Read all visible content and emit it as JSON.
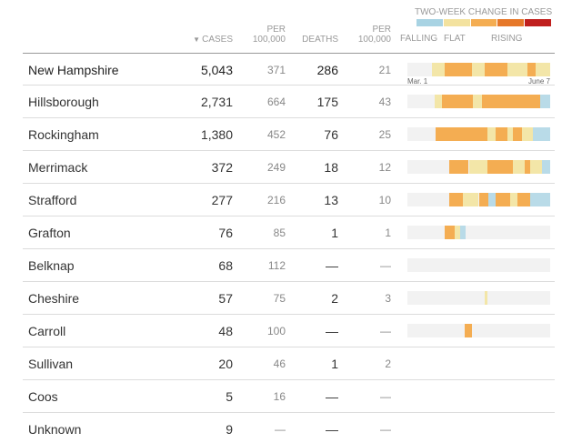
{
  "header": {
    "cases": "CASES",
    "sort_arrow": "▼",
    "per1_line1": "PER",
    "per1_line2": "100,000",
    "deaths": "DEATHS",
    "per2_line1": "PER",
    "per2_line2": "100,000"
  },
  "legend": {
    "title": "TWO-WEEK CHANGE IN CASES",
    "labels": {
      "falling": "FALLING",
      "flat": "FLAT",
      "rising": "RISING"
    },
    "swatches": [
      "#a8d3e3",
      "#f3e29f",
      "#f4ad52",
      "#e6782a",
      "#c0201e"
    ]
  },
  "axis": {
    "start": "Mar. 1",
    "end": "June 7"
  },
  "colors": {
    "none": "#f2f2f2",
    "falling": "#b9dbe8",
    "flat": "#f3e6a8",
    "rising": "#f4ad52",
    "rising_dark": "#ee9a3d"
  },
  "rows": [
    {
      "name": "New Hampshire",
      "cases": "5,043",
      "per1": "371",
      "deaths": "286",
      "per2": "21",
      "trend": [
        [
          0.17,
          0.26,
          "flat"
        ],
        [
          0.26,
          0.45,
          "rising"
        ],
        [
          0.45,
          0.54,
          "flat"
        ],
        [
          0.54,
          0.7,
          "rising"
        ],
        [
          0.7,
          0.84,
          "flat"
        ],
        [
          0.84,
          0.9,
          "rising"
        ],
        [
          0.9,
          1.0,
          "flat"
        ]
      ]
    },
    {
      "name": "Hillsborough",
      "cases": "2,731",
      "per1": "664",
      "deaths": "175",
      "per2": "43",
      "trend": [
        [
          0.19,
          0.24,
          "flat"
        ],
        [
          0.24,
          0.46,
          "rising"
        ],
        [
          0.46,
          0.52,
          "flat"
        ],
        [
          0.52,
          0.93,
          "rising"
        ],
        [
          0.93,
          1.0,
          "falling"
        ]
      ]
    },
    {
      "name": "Rockingham",
      "cases": "1,380",
      "per1": "452",
      "deaths": "76",
      "per2": "25",
      "trend": [
        [
          0.2,
          0.56,
          "rising"
        ],
        [
          0.56,
          0.62,
          "flat"
        ],
        [
          0.62,
          0.7,
          "rising"
        ],
        [
          0.7,
          0.74,
          "flat"
        ],
        [
          0.74,
          0.8,
          "rising"
        ],
        [
          0.8,
          0.88,
          "flat"
        ],
        [
          0.88,
          1.0,
          "falling"
        ]
      ]
    },
    {
      "name": "Merrimack",
      "cases": "372",
      "per1": "249",
      "deaths": "18",
      "per2": "12",
      "trend": [
        [
          0.29,
          0.43,
          "rising"
        ],
        [
          0.43,
          0.56,
          "flat"
        ],
        [
          0.56,
          0.74,
          "rising"
        ],
        [
          0.74,
          0.82,
          "flat"
        ],
        [
          0.82,
          0.86,
          "rising"
        ],
        [
          0.86,
          0.94,
          "flat"
        ],
        [
          0.94,
          1.0,
          "falling"
        ]
      ]
    },
    {
      "name": "Strafford",
      "cases": "277",
      "per1": "216",
      "deaths": "13",
      "per2": "10",
      "trend": [
        [
          0.29,
          0.39,
          "rising"
        ],
        [
          0.39,
          0.5,
          "flat"
        ],
        [
          0.5,
          0.57,
          "rising"
        ],
        [
          0.57,
          0.62,
          "falling"
        ],
        [
          0.62,
          0.72,
          "rising"
        ],
        [
          0.72,
          0.77,
          "flat"
        ],
        [
          0.77,
          0.86,
          "rising"
        ],
        [
          0.86,
          1.0,
          "falling"
        ]
      ]
    },
    {
      "name": "Grafton",
      "cases": "76",
      "per1": "85",
      "deaths": "1",
      "per2": "1",
      "trend": [
        [
          0.26,
          0.33,
          "rising"
        ],
        [
          0.33,
          0.37,
          "flat"
        ],
        [
          0.37,
          0.41,
          "falling"
        ]
      ]
    },
    {
      "name": "Belknap",
      "cases": "68",
      "per1": "112",
      "deaths": "—",
      "per2": "—",
      "trend": []
    },
    {
      "name": "Cheshire",
      "cases": "57",
      "per1": "75",
      "deaths": "2",
      "per2": "3",
      "trend": [
        [
          0.54,
          0.56,
          "flat"
        ]
      ]
    },
    {
      "name": "Carroll",
      "cases": "48",
      "per1": "100",
      "deaths": "—",
      "per2": "—",
      "trend": [
        [
          0.4,
          0.45,
          "rising"
        ]
      ]
    },
    {
      "name": "Sullivan",
      "cases": "20",
      "per1": "46",
      "deaths": "1",
      "per2": "2",
      "trend": null
    },
    {
      "name": "Coos",
      "cases": "5",
      "per1": "16",
      "deaths": "—",
      "per2": "—",
      "trend": null
    },
    {
      "name": "Unknown",
      "cases": "9",
      "per1": "—",
      "deaths": "—",
      "per2": "—",
      "trend": null
    }
  ]
}
